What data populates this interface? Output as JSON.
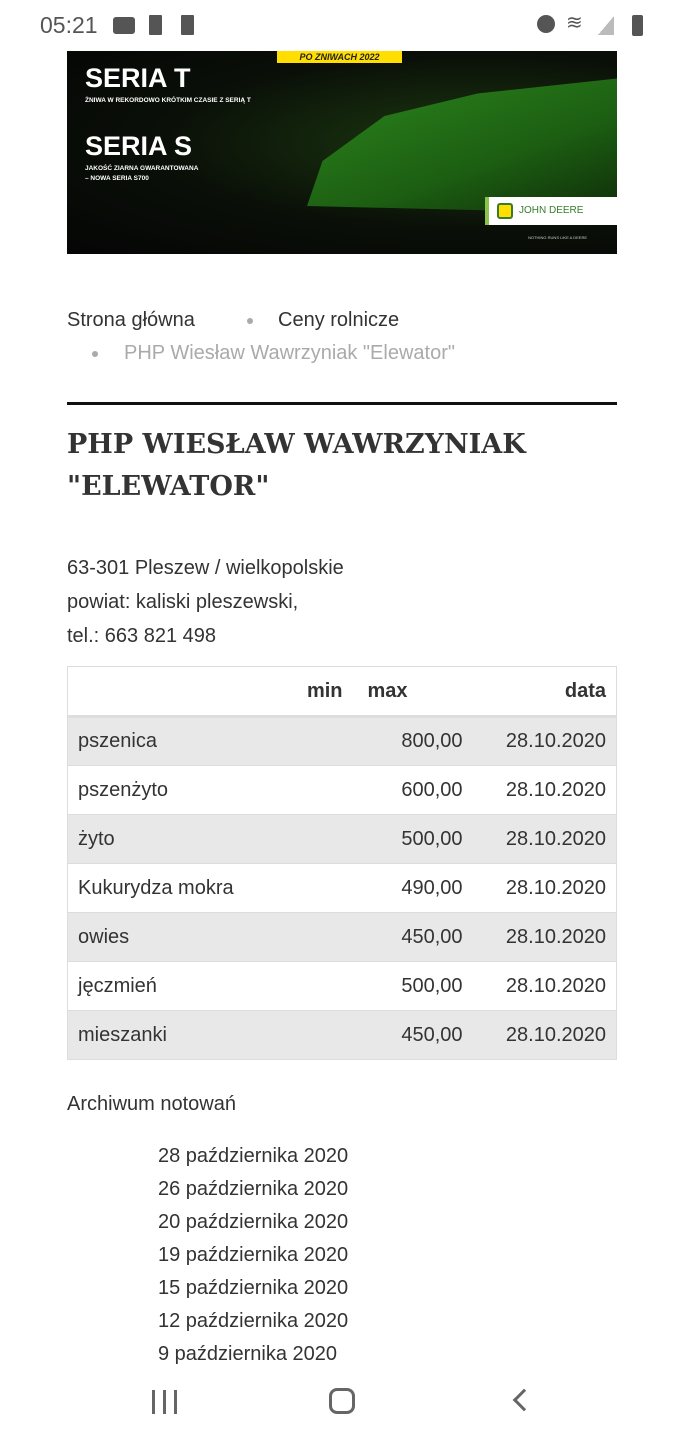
{
  "status_bar": {
    "time": "05:21",
    "icons": [
      "youtube-icon",
      "sd-card-icon",
      "sd-card-icon",
      "alarm-icon",
      "wifi-icon",
      "signal-icon",
      "battery-icon"
    ]
  },
  "banner": {
    "tag": "PO ZNIWACH 2022",
    "seria_t": "SERIA T",
    "seria_t_sub": "ŻNIWA W REKORDOWO KRÓTKIM CZASIE Z SERIĄ T",
    "seria_s": "SERIA S",
    "seria_s_sub1": "JAKOŚĆ ZIARNA GWARANTOWANA",
    "seria_s_sub2": "– NOWA SERIA S700",
    "brand": "JOHN DEERE",
    "slogan": "NOTHING RUNS LIKE A DEERE"
  },
  "breadcrumb": {
    "items": [
      "Strona główna",
      "Ceny rolnicze",
      "PHP Wiesław Wawrzyniak \"Elewator\""
    ]
  },
  "title": "PHP WIESŁAW WAWRZYNIAK \"ELEWATOR\"",
  "address": {
    "line1": "63-301 Pleszew / wielkopolskie",
    "line2": "powiat: kaliski pleszewski,",
    "line3": "tel.: 663 821 498"
  },
  "table": {
    "headers": [
      "",
      "min",
      "max",
      "data"
    ],
    "rows": [
      [
        "pszenica",
        "",
        "800,00",
        "28.10.2020"
      ],
      [
        "pszenżyto",
        "",
        "600,00",
        "28.10.2020"
      ],
      [
        "żyto",
        "",
        "500,00",
        "28.10.2020"
      ],
      [
        "Kukurydza mokra",
        "",
        "490,00",
        "28.10.2020"
      ],
      [
        "owies",
        "",
        "450,00",
        "28.10.2020"
      ],
      [
        "jęczmień",
        "",
        "500,00",
        "28.10.2020"
      ],
      [
        "mieszanki",
        "",
        "450,00",
        "28.10.2020"
      ]
    ]
  },
  "archive": {
    "title": "Archiwum notowań",
    "items": [
      "28 października 2020",
      "26 października 2020",
      "20 października 2020",
      "19 października 2020",
      "15 października 2020",
      "12 października 2020",
      "9 października 2020"
    ]
  },
  "nav_bar": {
    "icons": [
      "recent-apps-icon",
      "home-icon",
      "back-icon"
    ]
  }
}
